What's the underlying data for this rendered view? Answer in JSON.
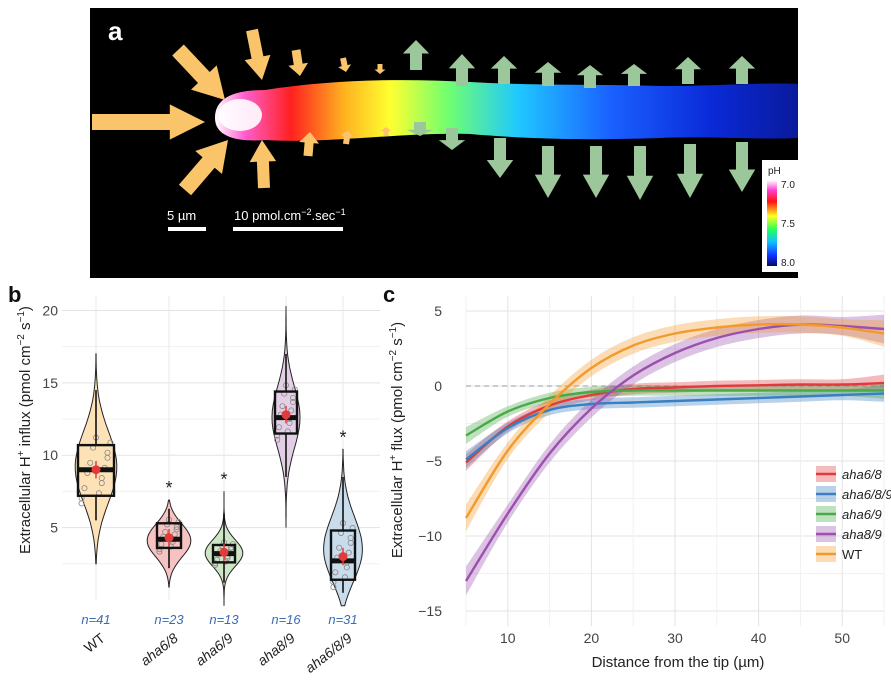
{
  "panel_a": {
    "letter": "a",
    "scale_length": "5 µm",
    "scale_flux_main": "10 pmol.cm",
    "scale_flux_sup1": "−2",
    "scale_flux_mid": ".sec",
    "scale_flux_sup2": "−1",
    "colorbar_title": "pH",
    "colorbar_ticks": [
      "7.0",
      "7.5",
      "8.0"
    ],
    "colors": {
      "background": "#000000",
      "influx_arrow": "#f9c46a",
      "efflux_arrow": "#9cc79a"
    }
  },
  "panel_b": {
    "letter": "b",
    "significance_marker": "*"
  },
  "panel_c": {
    "letter": "c"
  },
  "chart_data": [
    {
      "type": "violin-box",
      "ylabel_main": "Extracellular H",
      "ylabel_sup": "+",
      "ylabel_rest": " influx (pmol cm",
      "ylabel_sup2": "−2",
      "ylabel_sup3": "−1",
      "ylabel_s": " s",
      "ylabel_end": ")",
      "ylim": [
        0,
        21
      ],
      "yticks": [
        5,
        10,
        15,
        20
      ],
      "grid": true,
      "categories": [
        "WT",
        "aha6/8",
        "aha6/9",
        "aha8/9",
        "aha6/8/9"
      ],
      "n_labels": [
        "n=41",
        "n=23",
        "n=13",
        "n=16",
        "n=31"
      ],
      "significant": [
        false,
        true,
        true,
        false,
        true
      ],
      "fill_colors": [
        "#fde2b8",
        "#f6c2c2",
        "#cfe6c6",
        "#e3cfe5",
        "#c9dceb"
      ],
      "box": [
        {
          "min": 5.5,
          "q1": 7.2,
          "median": 9.0,
          "q3": 10.7,
          "max": 14.5,
          "mean": 9.0
        },
        {
          "min": 2.2,
          "q1": 3.6,
          "median": 4.2,
          "q3": 5.3,
          "max": 6.3,
          "mean": 4.3
        },
        {
          "min": 1.2,
          "q1": 2.6,
          "median": 3.2,
          "q3": 3.8,
          "max": 6.0,
          "mean": 3.3
        },
        {
          "min": 8.5,
          "q1": 11.5,
          "median": 12.6,
          "q3": 14.4,
          "max": 17.0,
          "mean": 12.8
        },
        {
          "min": 0.5,
          "q1": 1.4,
          "median": 2.7,
          "q3": 4.8,
          "max": 8.5,
          "mean": 3.0
        }
      ],
      "violin_range": [
        [
          2.5,
          17.0
        ],
        [
          0.9,
          6.9
        ],
        [
          -0.4,
          7.5
        ],
        [
          5.0,
          20.3
        ],
        [
          -0.4,
          10.4
        ]
      ]
    },
    {
      "type": "line",
      "ylabel_main": "Extracellular H",
      "ylabel_sup": "+",
      "ylabel_rest": " flux (pmol cm",
      "ylabel_sup2": "−2",
      "ylabel_s": " s",
      "ylabel_sup3": "−1",
      "ylabel_end": ")",
      "xlabel": "Distance from the tip (µm)",
      "xlim": [
        5,
        55
      ],
      "ylim": [
        -16,
        6
      ],
      "xticks": [
        10,
        20,
        30,
        40,
        50
      ],
      "yticks": [
        -15,
        -10,
        -5,
        0,
        5
      ],
      "grid": true,
      "legend_position": "right",
      "x": [
        5,
        10,
        15,
        20,
        25,
        30,
        35,
        40,
        45,
        50,
        55
      ],
      "series": [
        {
          "name": "aha6/8",
          "color": "#e0393e",
          "values": [
            -5.1,
            -2.7,
            -1.3,
            -0.6,
            -0.2,
            -0.1,
            0.0,
            0.05,
            0.1,
            0.1,
            0.2
          ],
          "ci": 0.35
        },
        {
          "name": "aha6/8/9",
          "color": "#3a7fc1",
          "values": [
            -4.9,
            -2.8,
            -1.6,
            -1.2,
            -1.1,
            -1.0,
            -0.9,
            -0.8,
            -0.7,
            -0.6,
            -0.5
          ],
          "ci": 0.35
        },
        {
          "name": "aha6/9",
          "color": "#4aaa48",
          "values": [
            -3.3,
            -1.7,
            -0.8,
            -0.4,
            -0.3,
            -0.3,
            -0.3,
            -0.3,
            -0.3,
            -0.3,
            -0.3
          ],
          "ci": 0.35
        },
        {
          "name": "aha8/9",
          "color": "#9b4fae",
          "values": [
            -13.0,
            -8.5,
            -4.5,
            -1.5,
            0.7,
            2.2,
            3.2,
            3.8,
            4.1,
            4.0,
            3.8
          ],
          "ci": 0.6
        },
        {
          "name": "WT",
          "color": "#f39a2c",
          "values": [
            -8.8,
            -4.3,
            -1.2,
            1.2,
            2.7,
            3.5,
            3.9,
            4.1,
            4.1,
            3.9,
            3.5
          ],
          "ci": 0.55
        }
      ]
    }
  ]
}
